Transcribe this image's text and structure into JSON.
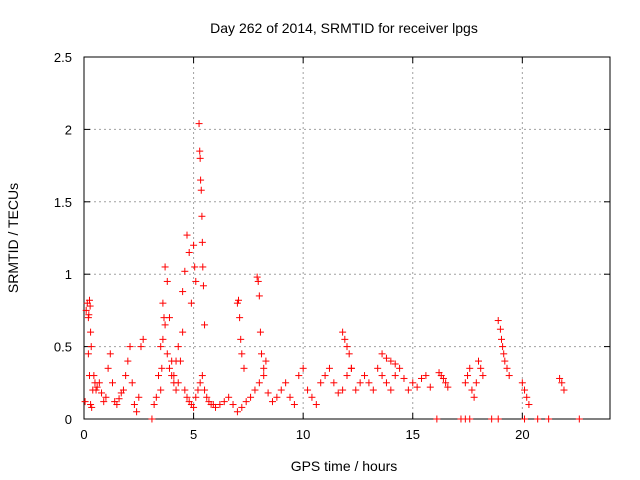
{
  "chart_data": {
    "type": "scatter",
    "title": "Day 262 of 2014, SRMTID for receiver lpgs",
    "xlabel": "GPS time / hours",
    "ylabel": "SRMTID / TECUs",
    "xlim": [
      0,
      24
    ],
    "ylim": [
      0,
      2.5
    ],
    "grid": true,
    "marker": "+",
    "color": "#ff0000",
    "xticks": [
      0,
      5,
      10,
      15,
      20
    ],
    "xtick_labels": [
      "0",
      "5",
      "10",
      "15",
      "20"
    ],
    "yticks": [
      0,
      0.5,
      1,
      1.5,
      2,
      2.5
    ],
    "ytick_labels": [
      "0",
      "0.5",
      "1",
      "1.5",
      "2",
      "2.5"
    ],
    "series": [
      {
        "name": "SRMTID",
        "x": [
          0.05,
          0.1,
          0.15,
          0.2,
          0.25,
          0.3,
          0.35,
          0.4,
          0.45,
          0.5,
          0.55,
          0.6,
          0.7,
          0.8,
          0.9,
          1.0,
          1.1,
          1.2,
          1.3,
          1.4,
          1.5,
          1.6,
          1.7,
          1.8,
          1.9,
          2.0,
          2.1,
          2.2,
          2.3,
          2.4,
          2.5,
          2.6,
          2.7,
          0.2,
          0.22,
          0.25,
          0.28,
          0.3,
          0.33,
          3.2,
          3.3,
          3.4,
          3.5,
          3.6,
          3.7,
          3.8,
          3.9,
          4.0,
          4.1,
          4.2,
          4.3,
          4.4,
          4.5,
          4.6,
          4.7,
          4.8,
          4.9,
          5.0,
          5.1,
          5.2,
          5.3,
          5.4,
          5.5,
          5.6,
          5.7,
          5.8,
          5.9,
          6.0,
          3.5,
          3.55,
          3.6,
          3.65,
          3.7,
          3.8,
          3.9,
          4.0,
          4.1,
          4.2,
          4.3,
          4.5,
          4.6,
          4.7,
          4.8,
          4.9,
          5.0,
          5.05,
          5.1,
          5.25,
          5.28,
          5.3,
          5.32,
          5.35,
          5.38,
          5.4,
          5.42,
          5.45,
          5.5,
          6.2,
          6.4,
          6.6,
          6.8,
          7.0,
          7.2,
          7.4,
          7.6,
          7.8,
          8.0,
          8.2,
          8.4,
          8.6,
          8.8,
          9.0,
          9.2,
          9.4,
          9.6,
          9.8,
          10.0,
          10.2,
          10.4,
          10.6,
          10.8,
          11.0,
          11.2,
          11.4,
          11.6,
          11.8,
          12.0,
          12.2,
          12.4,
          12.6,
          12.8,
          13.0,
          13.2,
          13.4,
          13.6,
          13.8,
          14.0,
          14.2,
          14.4,
          14.6,
          14.8,
          15.0,
          15.2,
          15.4,
          15.6,
          15.8,
          7.0,
          7.05,
          7.1,
          7.15,
          7.2,
          7.3,
          7.9,
          7.95,
          8.0,
          8.05,
          8.1,
          8.2,
          8.3,
          11.8,
          11.9,
          12.0,
          12.1,
          12.2,
          13.6,
          13.8,
          14.0,
          14.2,
          16.2,
          16.3,
          16.4,
          16.5,
          16.6,
          17.4,
          17.5,
          17.6,
          17.7,
          17.8,
          17.9,
          18.0,
          18.1,
          18.2,
          18.9,
          19.0,
          19.05,
          19.1,
          19.15,
          19.2,
          19.3,
          19.4,
          20.0,
          20.1,
          20.2,
          20.3,
          21.7,
          21.8,
          21.9,
          3.1,
          16.1,
          17.2,
          17.4,
          17.6,
          18.6,
          18.9,
          20.1,
          20.7,
          21.2,
          22.6
        ],
        "y": [
          0.12,
          0.75,
          0.8,
          0.45,
          0.3,
          0.1,
          0.08,
          0.2,
          0.3,
          0.25,
          0.2,
          0.22,
          0.25,
          0.18,
          0.12,
          0.15,
          0.35,
          0.45,
          0.25,
          0.12,
          0.1,
          0.14,
          0.18,
          0.2,
          0.3,
          0.4,
          0.5,
          0.25,
          0.1,
          0.05,
          0.15,
          0.5,
          0.55,
          0.7,
          0.72,
          0.82,
          0.78,
          0.6,
          0.5,
          0.1,
          0.15,
          0.3,
          0.5,
          0.8,
          1.05,
          0.95,
          0.7,
          0.4,
          0.3,
          0.2,
          0.25,
          0.4,
          0.6,
          0.2,
          0.15,
          0.12,
          0.1,
          0.08,
          0.15,
          0.2,
          0.25,
          0.3,
          0.2,
          0.15,
          0.12,
          0.1,
          0.1,
          0.08,
          0.2,
          0.35,
          0.55,
          0.7,
          0.65,
          0.45,
          0.35,
          0.3,
          0.25,
          0.4,
          0.5,
          0.88,
          1.02,
          1.27,
          1.15,
          0.8,
          1.2,
          1.05,
          0.95,
          2.04,
          1.85,
          1.8,
          1.65,
          1.58,
          1.4,
          1.22,
          1.05,
          0.92,
          0.65,
          0.1,
          0.12,
          0.15,
          0.1,
          0.05,
          0.08,
          0.12,
          0.15,
          0.2,
          0.25,
          0.3,
          0.18,
          0.12,
          0.15,
          0.2,
          0.25,
          0.15,
          0.1,
          0.3,
          0.35,
          0.2,
          0.15,
          0.1,
          0.25,
          0.3,
          0.35,
          0.25,
          0.18,
          0.2,
          0.3,
          0.35,
          0.2,
          0.25,
          0.3,
          0.25,
          0.2,
          0.35,
          0.3,
          0.25,
          0.2,
          0.3,
          0.35,
          0.28,
          0.2,
          0.25,
          0.22,
          0.28,
          0.3,
          0.22,
          0.8,
          0.82,
          0.7,
          0.55,
          0.45,
          0.35,
          0.98,
          0.95,
          0.85,
          0.6,
          0.45,
          0.35,
          0.4,
          0.6,
          0.55,
          0.5,
          0.45,
          0.35,
          0.45,
          0.42,
          0.4,
          0.38,
          0.32,
          0.3,
          0.28,
          0.25,
          0.22,
          0.25,
          0.3,
          0.35,
          0.2,
          0.15,
          0.25,
          0.4,
          0.35,
          0.3,
          0.68,
          0.62,
          0.55,
          0.5,
          0.45,
          0.4,
          0.35,
          0.3,
          0.25,
          0.2,
          0.15,
          0.1,
          0.28,
          0.25,
          0.2,
          0.0,
          0.0,
          0.0,
          0.0,
          0.0,
          0.0,
          0.0,
          0.0,
          0.0,
          0.0,
          0.0
        ]
      }
    ]
  }
}
